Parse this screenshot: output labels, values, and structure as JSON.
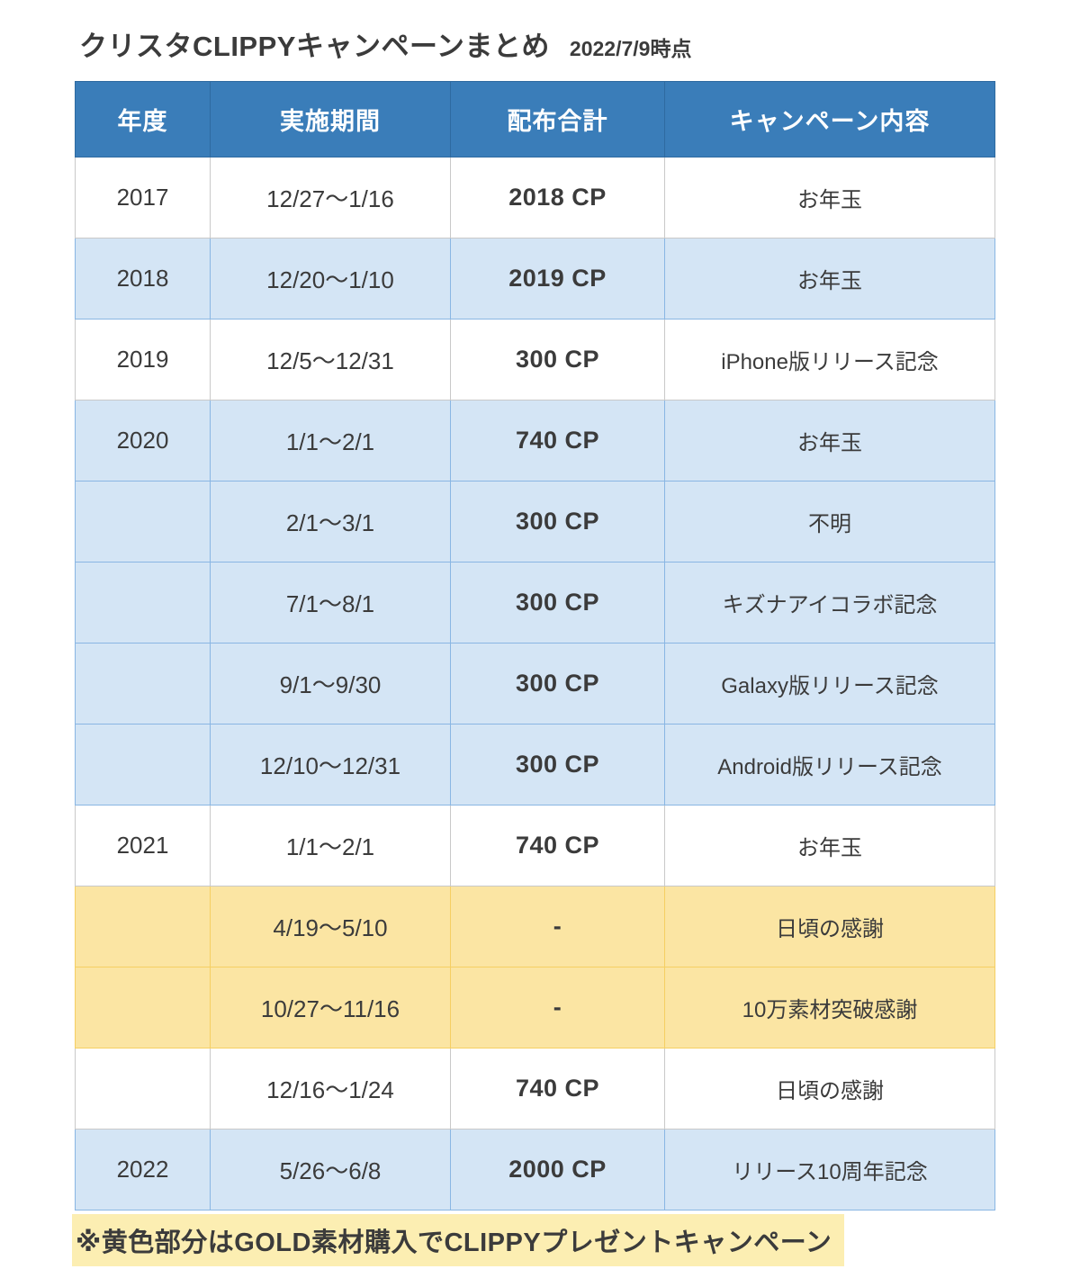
{
  "page": {
    "title": "クリスタCLIPPYキャンペーンまとめ",
    "as_of": "2022/7/9時点",
    "footnote": "※黄色部分はGOLD素材購入でCLIPPYプレゼントキャンペーン"
  },
  "colors": {
    "header_bg": "#3a7db9",
    "header_text": "#ffffff",
    "row_white_bg": "#ffffff",
    "row_white_border": "#c9c9c9",
    "row_blue_bg": "#d4e5f5",
    "row_blue_border": "#89b6e3",
    "row_yellow_bg": "#fbe5a3",
    "row_yellow_border": "#f5cf63",
    "footnote_bg": "#fceeb2",
    "text": "#3b3b3b"
  },
  "chart_data": {
    "type": "table",
    "title": "クリスタCLIPPYキャンペーンまとめ",
    "subtitle": "2022/7/9時点",
    "columns": [
      "年度",
      "実施期間",
      "配布合計",
      "キャンペーン内容"
    ],
    "rows": [
      {
        "year": "2017",
        "period": "12/27〜1/16",
        "total": "2018 CP",
        "content": "お年玉",
        "highlight": "white"
      },
      {
        "year": "2018",
        "period": "12/20〜1/10",
        "total": "2019 CP",
        "content": "お年玉",
        "highlight": "blue"
      },
      {
        "year": "2019",
        "period": "12/5〜12/31",
        "total": "300 CP",
        "content": "iPhone版リリース記念",
        "highlight": "white"
      },
      {
        "year": "2020",
        "period": "1/1〜2/1",
        "total": "740 CP",
        "content": "お年玉",
        "highlight": "blue"
      },
      {
        "year": "",
        "period": "2/1〜3/1",
        "total": "300 CP",
        "content": "不明",
        "highlight": "blue"
      },
      {
        "year": "",
        "period": "7/1〜8/1",
        "total": "300 CP",
        "content": "キズナアイコラボ記念",
        "highlight": "blue"
      },
      {
        "year": "",
        "period": "9/1〜9/30",
        "total": "300 CP",
        "content": "Galaxy版リリース記念",
        "highlight": "blue"
      },
      {
        "year": "",
        "period": "12/10〜12/31",
        "total": "300 CP",
        "content": "Android版リリース記念",
        "highlight": "blue"
      },
      {
        "year": "2021",
        "period": "1/1〜2/1",
        "total": "740 CP",
        "content": "お年玉",
        "highlight": "white"
      },
      {
        "year": "",
        "period": "4/19〜5/10",
        "total": "-",
        "content": "日頃の感謝",
        "highlight": "yellow"
      },
      {
        "year": "",
        "period": "10/27〜11/16",
        "total": "-",
        "content": "10万素材突破感謝",
        "highlight": "yellow"
      },
      {
        "year": "",
        "period": "12/16〜1/24",
        "total": "740 CP",
        "content": "日頃の感謝",
        "highlight": "white"
      },
      {
        "year": "2022",
        "period": "5/26〜6/8",
        "total": "2000 CP",
        "content": "リリース10周年記念",
        "highlight": "blue"
      }
    ],
    "footnote": "※黄色部分はGOLD素材購入でCLIPPYプレゼントキャンペーン",
    "legend_position": "bottom",
    "notes": "yellow rows = CLIPPY gift campaign for purchasing GOLD materials"
  }
}
